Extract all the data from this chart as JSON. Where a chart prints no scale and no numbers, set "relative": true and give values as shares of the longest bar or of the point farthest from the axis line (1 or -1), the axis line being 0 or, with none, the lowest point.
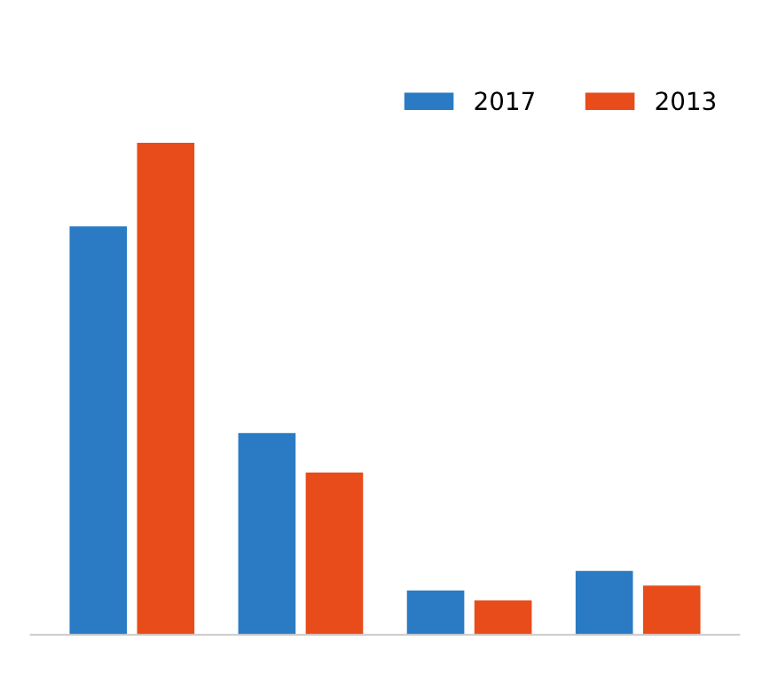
{
  "chart_data": {
    "type": "bar",
    "relative": true,
    "categories": [
      null,
      null,
      null,
      null
    ],
    "series": [
      {
        "name": "2017",
        "color": "#2b7bc4",
        "values": [
          0.83,
          0.41,
          0.09,
          0.13
        ]
      },
      {
        "name": "2013",
        "color": "#e84c1a",
        "values": [
          1,
          0.33,
          0.07,
          0.1
        ]
      }
    ],
    "legend": "top right"
  }
}
